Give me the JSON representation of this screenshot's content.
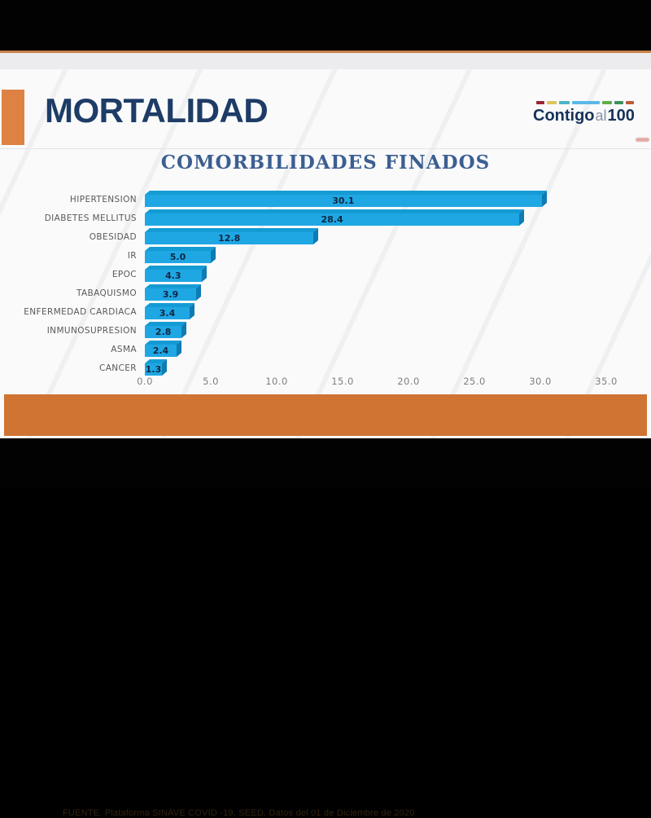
{
  "header": {
    "title": "MORTALIDAD",
    "logo": {
      "word1": "Contigo",
      "word2": "al",
      "word3": "100",
      "dash_colors": [
        "#9d2235",
        "#e0c35a",
        "#4ab5c4",
        "#5bb8e8",
        "#5fae46",
        "#3f8f5f",
        "#bf5a3a"
      ],
      "dash_widths": [
        10,
        12,
        13,
        34,
        12,
        11,
        10
      ]
    }
  },
  "chart_data": {
    "type": "bar",
    "orientation": "horizontal",
    "title": "COMORBILIDADES FINADOS",
    "categories": [
      "HIPERTENSION",
      "DIABETES MELLITUS",
      "OBESIDAD",
      "IR",
      "EPOC",
      "TABAQUISMO",
      "ENFERMEDAD CARDIACA",
      "INMUNOSUPRESION",
      "ASMA",
      "CANCER"
    ],
    "values": [
      30.1,
      28.4,
      12.8,
      5.0,
      4.3,
      3.9,
      3.4,
      2.8,
      2.4,
      1.3
    ],
    "value_labels": [
      "30.1",
      "28.4",
      "12.8",
      "5.0",
      "4.3",
      "3.9",
      "3.4",
      "2.8",
      "2.4",
      "1.3"
    ],
    "xlabel": "",
    "ylabel": "",
    "xlim": [
      0,
      35
    ],
    "x_ticks": [
      "0.0",
      "5.0",
      "10.0",
      "15.0",
      "20.0",
      "25.0",
      "30.0",
      "35.0"
    ],
    "grid": false,
    "legend": false,
    "bar_color": "#1fa7e4",
    "bar_top_color": "#149bd4",
    "bar_side_color": "#0e7bb3",
    "value_label_position": "center-inside"
  },
  "footer": {
    "source": "FUENTE. Plataforma SINAVE COVID -19, SEED. Datos del 01 de Diciembre de 2020"
  },
  "colors": {
    "accent_orange": "#dd8243",
    "footer_band_orange": "#cf7433",
    "title_navy": "#1d3c66",
    "chart_title_blue": "#3c5f92"
  }
}
